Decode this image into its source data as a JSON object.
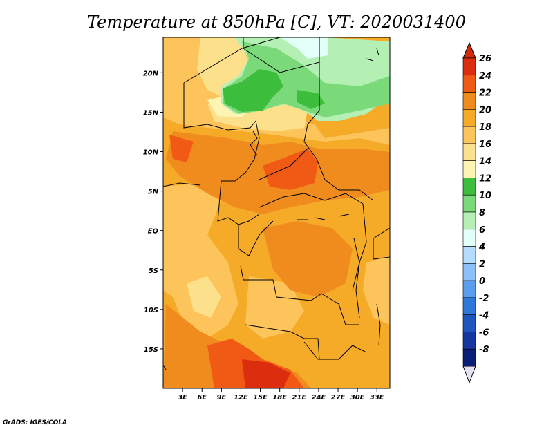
{
  "title": "Temperature at 850hPa [C], VT: 2020031400",
  "credit": "GrADS: IGES/COLA",
  "map": {
    "lon_range": [
      0,
      35
    ],
    "lat_range": [
      -20,
      24.5
    ],
    "lon_ticks": [
      {
        "value": 3,
        "label": "3E"
      },
      {
        "value": 6,
        "label": "6E"
      },
      {
        "value": 9,
        "label": "9E"
      },
      {
        "value": 12,
        "label": "12E"
      },
      {
        "value": 15,
        "label": "15E"
      },
      {
        "value": 18,
        "label": "18E"
      },
      {
        "value": 21,
        "label": "21E"
      },
      {
        "value": 24,
        "label": "24E"
      },
      {
        "value": 27,
        "label": "27E"
      },
      {
        "value": 30,
        "label": "30E"
      },
      {
        "value": 33,
        "label": "33E"
      }
    ],
    "lat_ticks": [
      {
        "value": 20,
        "label": "20N"
      },
      {
        "value": 15,
        "label": "15N"
      },
      {
        "value": 10,
        "label": "10N"
      },
      {
        "value": 5,
        "label": "5N"
      },
      {
        "value": 0,
        "label": "EQ"
      },
      {
        "value": -5,
        "label": "5S"
      },
      {
        "value": -10,
        "label": "10S"
      },
      {
        "value": -15,
        "label": "15S"
      }
    ]
  },
  "colorbar": {
    "bins": [
      {
        "label": "26",
        "color": "#dc2e0f"
      },
      {
        "label": "24",
        "color": "#f05a14"
      },
      {
        "label": "22",
        "color": "#f08c1e"
      },
      {
        "label": "20",
        "color": "#f5aa28"
      },
      {
        "label": "18",
        "color": "#fcc45a"
      },
      {
        "label": "16",
        "color": "#fde08c"
      },
      {
        "label": "14",
        "color": "#fef4b4"
      },
      {
        "label": "12",
        "color": "#3cbe3c"
      },
      {
        "label": "10",
        "color": "#7ada7a"
      },
      {
        "label": "8",
        "color": "#b4f0b4"
      },
      {
        "label": "6",
        "color": "#e2fff8"
      },
      {
        "label": "4",
        "color": "#b4dcff"
      },
      {
        "label": "2",
        "color": "#8cc0fa"
      },
      {
        "label": "0",
        "color": "#5a9ef0"
      },
      {
        "label": "-2",
        "color": "#2e78dc"
      },
      {
        "label": "-4",
        "color": "#1e55be"
      },
      {
        "label": "-6",
        "color": "#1437a0"
      },
      {
        "label": "-8",
        "color": "#0a1e78"
      }
    ],
    "over_color": "#d42a0a",
    "under_color": "#e6e0f5"
  }
}
